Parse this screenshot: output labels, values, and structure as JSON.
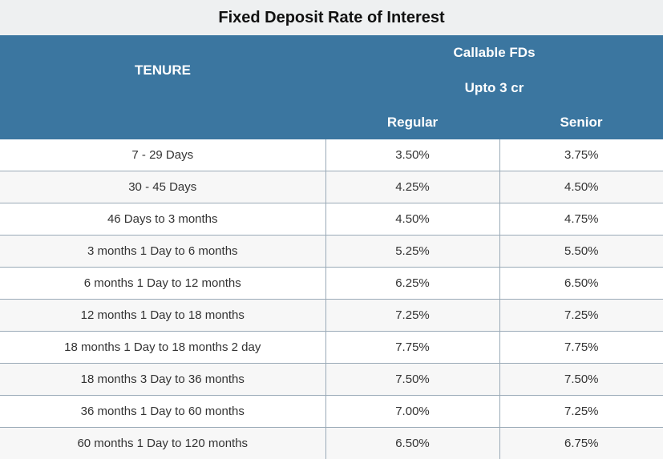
{
  "title": "Fixed Deposit Rate of Interest",
  "header": {
    "tenure": "TENURE",
    "group": "Callable FDs",
    "subgroup": "Upto 3 cr",
    "regular": "Regular",
    "senior": "Senior"
  },
  "rows": [
    {
      "tenure": "7 - 29 Days",
      "regular": "3.50%",
      "senior": "3.75%"
    },
    {
      "tenure": "30 - 45 Days",
      "regular": "4.25%",
      "senior": "4.50%"
    },
    {
      "tenure": "46 Days to 3 months",
      "regular": "4.50%",
      "senior": "4.75%"
    },
    {
      "tenure": "3 months 1 Day to 6 months",
      "regular": "5.25%",
      "senior": "5.50%"
    },
    {
      "tenure": "6 months 1 Day to 12 months",
      "regular": "6.25%",
      "senior": "6.50%"
    },
    {
      "tenure": "12 months 1 Day to 18 months",
      "regular": "7.25%",
      "senior": "7.25%"
    },
    {
      "tenure": "18 months 1 Day to 18 months 2 day",
      "regular": "7.75%",
      "senior": "7.75%"
    },
    {
      "tenure": "18 months 3 Day to 36 months",
      "regular": "7.50%",
      "senior": "7.50%"
    },
    {
      "tenure": "36 months 1 Day to 60 months",
      "regular": "7.00%",
      "senior": "7.25%"
    },
    {
      "tenure": "60 months 1 Day to 120 months",
      "regular": "6.50%",
      "senior": "6.75%"
    }
  ]
}
